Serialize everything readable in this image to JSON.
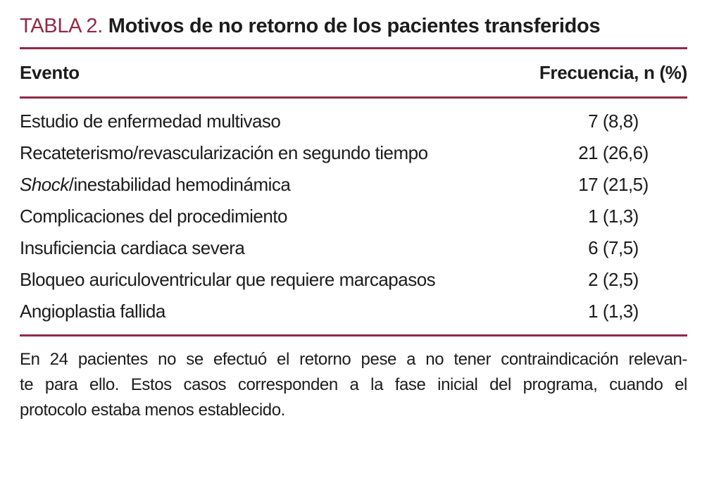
{
  "title": {
    "label": "TABLA 2.",
    "text": "Motivos de no retorno de los pacientes transferidos"
  },
  "colors": {
    "accent_maroon": "#8f2a45",
    "text": "#1c1c1c",
    "background": "#ffffff"
  },
  "table": {
    "columns": [
      "Evento",
      "Frecuencia, n (%)"
    ],
    "rows": [
      {
        "event_italic": "",
        "event": "Estudio de enfermedad multivaso",
        "value": "7 (8,8)"
      },
      {
        "event_italic": "",
        "event": "Recateterismo/revascularización en segundo tiempo",
        "value": "21 (26,6)"
      },
      {
        "event_italic": "Shock",
        "event": "/inestabilidad hemodinámica",
        "value": "17 (21,5)"
      },
      {
        "event_italic": "",
        "event": "Complicaciones del procedimiento",
        "value": "1 (1,3)"
      },
      {
        "event_italic": "",
        "event": "Insuficiencia cardiaca severa",
        "value": "6 (7,5)"
      },
      {
        "event_italic": "",
        "event": "Bloqueo auriculoventricular que requiere marcapasos",
        "value": "2 (2,5)"
      },
      {
        "event_italic": "",
        "event": "Angioplastia fallida",
        "value": "1 (1,3)"
      }
    ]
  },
  "footnote": {
    "lines": [
      "En 24 pacientes no se efectuó el retorno pese a no tener contraindicación relevan-",
      "te para ello. Estos casos corresponden a la fase inicial del programa, cuando el",
      "protocolo estaba menos establecido."
    ]
  }
}
